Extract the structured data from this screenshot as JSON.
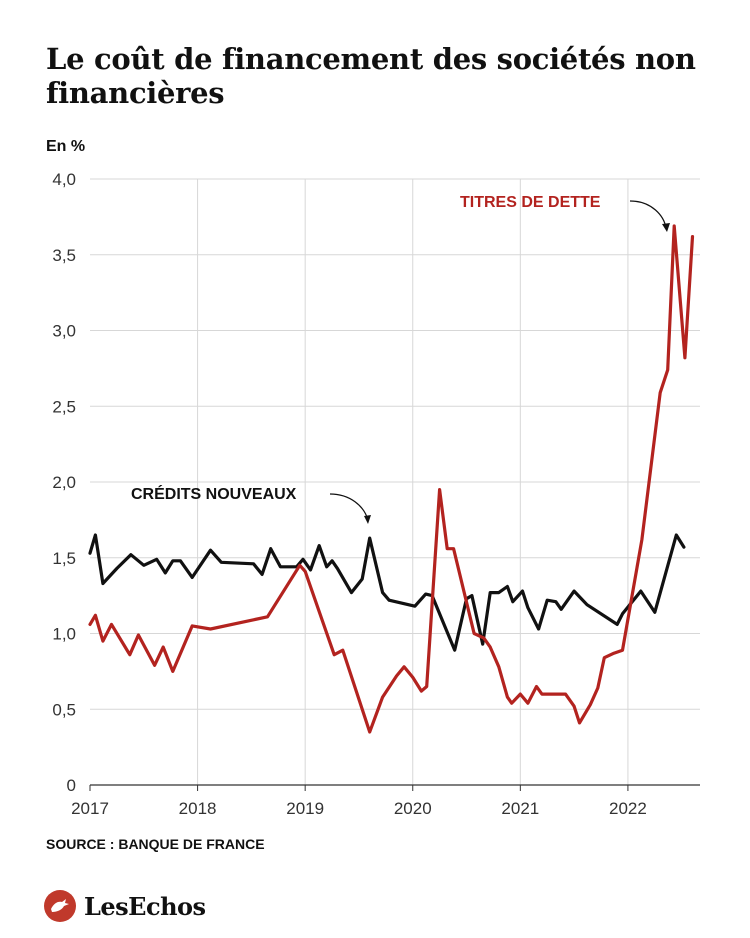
{
  "title": "Le coût de financement des sociétés non financières",
  "unit_label": "En %",
  "source": "SOURCE : BANQUE DE FRANCE",
  "brand": {
    "name": "LesEchos",
    "logo_icon": "echos-griffin-logo-icon"
  },
  "colors": {
    "credits": "#111111",
    "titres": "#b3231f",
    "grid": "#d7d7d7",
    "axis": "#333333",
    "brand": "#c0392b"
  },
  "chart_data": {
    "type": "line",
    "title": "Le coût de financement des sociétés non financières",
    "ylabel": "En %",
    "ylim": [
      0,
      4.0
    ],
    "yticks": [
      0,
      0.5,
      1.0,
      1.5,
      2.0,
      2.5,
      3.0,
      3.5,
      4.0
    ],
    "ytick_labels": [
      "0",
      "0,5",
      "1,0",
      "1,5",
      "2,0",
      "2,5",
      "3,0",
      "3,5",
      "4,0"
    ],
    "xlim": [
      2017.0,
      2022.67
    ],
    "xticks": [
      2017,
      2018,
      2019,
      2020,
      2021,
      2022
    ],
    "xtick_labels": [
      "2017",
      "2018",
      "2019",
      "2020",
      "2021",
      "2022"
    ],
    "grid": true,
    "series": [
      {
        "name": "CRÉDITS NOUVEAUX",
        "points": [
          [
            2017.0,
            1.53
          ],
          [
            2017.05,
            1.65
          ],
          [
            2017.12,
            1.33
          ],
          [
            2017.25,
            1.43
          ],
          [
            2017.38,
            1.52
          ],
          [
            2017.5,
            1.45
          ],
          [
            2017.62,
            1.49
          ],
          [
            2017.7,
            1.4
          ],
          [
            2017.77,
            1.48
          ],
          [
            2017.84,
            1.48
          ],
          [
            2017.95,
            1.37
          ],
          [
            2018.12,
            1.55
          ],
          [
            2018.22,
            1.47
          ],
          [
            2018.52,
            1.46
          ],
          [
            2018.6,
            1.39
          ],
          [
            2018.68,
            1.56
          ],
          [
            2018.77,
            1.44
          ],
          [
            2018.92,
            1.44
          ],
          [
            2018.98,
            1.49
          ],
          [
            2019.05,
            1.42
          ],
          [
            2019.13,
            1.58
          ],
          [
            2019.2,
            1.44
          ],
          [
            2019.25,
            1.48
          ],
          [
            2019.3,
            1.43
          ],
          [
            2019.43,
            1.27
          ],
          [
            2019.53,
            1.36
          ],
          [
            2019.6,
            1.63
          ],
          [
            2019.72,
            1.27
          ],
          [
            2019.78,
            1.22
          ],
          [
            2020.02,
            1.18
          ],
          [
            2020.12,
            1.26
          ],
          [
            2020.18,
            1.25
          ],
          [
            2020.39,
            0.89
          ],
          [
            2020.5,
            1.23
          ],
          [
            2020.55,
            1.25
          ],
          [
            2020.65,
            0.93
          ],
          [
            2020.72,
            1.27
          ],
          [
            2020.8,
            1.27
          ],
          [
            2020.88,
            1.31
          ],
          [
            2020.93,
            1.21
          ],
          [
            2021.02,
            1.28
          ],
          [
            2021.07,
            1.17
          ],
          [
            2021.17,
            1.03
          ],
          [
            2021.25,
            1.22
          ],
          [
            2021.33,
            1.21
          ],
          [
            2021.38,
            1.16
          ],
          [
            2021.5,
            1.28
          ],
          [
            2021.62,
            1.19
          ],
          [
            2021.9,
            1.06
          ],
          [
            2021.95,
            1.13
          ],
          [
            2022.12,
            1.28
          ],
          [
            2022.25,
            1.14
          ],
          [
            2022.45,
            1.65
          ],
          [
            2022.52,
            1.57
          ]
        ]
      },
      {
        "name": "TITRES DE DETTE",
        "points": [
          [
            2017.0,
            1.06
          ],
          [
            2017.05,
            1.12
          ],
          [
            2017.12,
            0.95
          ],
          [
            2017.2,
            1.06
          ],
          [
            2017.37,
            0.86
          ],
          [
            2017.45,
            0.99
          ],
          [
            2017.6,
            0.79
          ],
          [
            2017.68,
            0.91
          ],
          [
            2017.77,
            0.75
          ],
          [
            2017.95,
            1.05
          ],
          [
            2018.12,
            1.03
          ],
          [
            2018.65,
            1.11
          ],
          [
            2018.95,
            1.45
          ],
          [
            2019.0,
            1.41
          ],
          [
            2019.27,
            0.86
          ],
          [
            2019.35,
            0.89
          ],
          [
            2019.6,
            0.35
          ],
          [
            2019.72,
            0.58
          ],
          [
            2019.85,
            0.72
          ],
          [
            2019.92,
            0.78
          ],
          [
            2020.0,
            0.71
          ],
          [
            2020.08,
            0.62
          ],
          [
            2020.13,
            0.65
          ],
          [
            2020.25,
            1.95
          ],
          [
            2020.32,
            1.56
          ],
          [
            2020.38,
            1.56
          ],
          [
            2020.57,
            1.0
          ],
          [
            2020.66,
            0.97
          ],
          [
            2020.72,
            0.91
          ],
          [
            2020.8,
            0.78
          ],
          [
            2020.88,
            0.58
          ],
          [
            2020.92,
            0.54
          ],
          [
            2021.0,
            0.6
          ],
          [
            2021.07,
            0.54
          ],
          [
            2021.15,
            0.65
          ],
          [
            2021.2,
            0.6
          ],
          [
            2021.42,
            0.6
          ],
          [
            2021.5,
            0.52
          ],
          [
            2021.55,
            0.41
          ],
          [
            2021.65,
            0.53
          ],
          [
            2021.72,
            0.64
          ],
          [
            2021.78,
            0.84
          ],
          [
            2021.87,
            0.87
          ],
          [
            2021.95,
            0.89
          ],
          [
            2022.13,
            1.62
          ],
          [
            2022.3,
            2.59
          ],
          [
            2022.37,
            2.74
          ],
          [
            2022.43,
            3.69
          ],
          [
            2022.53,
            2.82
          ],
          [
            2022.6,
            3.62
          ]
        ]
      }
    ],
    "annotations": [
      {
        "text": "CRÉDITS NOUVEAUX",
        "series": "CRÉDITS NOUVEAUX"
      },
      {
        "text": "TITRES DE DETTE",
        "series": "TITRES DE DETTE"
      }
    ]
  }
}
